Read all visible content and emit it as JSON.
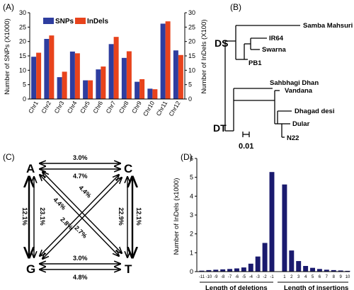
{
  "panel_labels": {
    "a": "(A)",
    "b": "(B)",
    "c": "(C)",
    "d": "(D)"
  },
  "colors": {
    "snp": "#2e3d9f",
    "indel": "#e8431c",
    "bar_d": "#1a1a6e",
    "axis": "#000000"
  },
  "chart_data": [
    {
      "type": "bar",
      "panel": "A",
      "categories": [
        "Chr1",
        "Chr2",
        "Chr3",
        "Chr4",
        "Chr5",
        "Chr6",
        "Chr7",
        "Chr8",
        "Chr9",
        "Chr10",
        "Chr11",
        "Chr12"
      ],
      "series": [
        {
          "name": "SNPs",
          "values": [
            14.7,
            20.9,
            7.6,
            16.5,
            6.5,
            10.3,
            19.1,
            14.3,
            6.0,
            3.6,
            26.2,
            16.9
          ],
          "axis": "left"
        },
        {
          "name": "InDels",
          "values": [
            16.1,
            22.1,
            9.5,
            15.9,
            6.5,
            11.3,
            21.6,
            16.6,
            6.9,
            3.4,
            27.0,
            15.3
          ],
          "axis": "right"
        }
      ],
      "ylabel": "Number of SNPs (X1000)",
      "y2label": "Number of InDels (X100)",
      "ylim": [
        0,
        30
      ],
      "y2lim": [
        0,
        30
      ],
      "yticks": [
        "0",
        "5",
        "10",
        "15",
        "20",
        "25",
        "30"
      ],
      "legend_position": "top-left"
    },
    {
      "type": "bar",
      "panel": "D",
      "categories": [
        "-11",
        "-10",
        "-9",
        "-8",
        "-7",
        "-6",
        "-5",
        "-4",
        "-3",
        "-2",
        "-1",
        "1",
        "2",
        "3",
        "4",
        "5",
        "6",
        "7",
        "8",
        "9",
        "10"
      ],
      "values": [
        0.05,
        0.08,
        0.1,
        0.12,
        0.14,
        0.17,
        0.22,
        0.42,
        0.8,
        1.52,
        5.28,
        4.62,
        1.12,
        0.56,
        0.3,
        0.2,
        0.14,
        0.1,
        0.08,
        0.06,
        0.04
      ],
      "ylabel": "Number of InDels (x1000)",
      "ylim": [
        0,
        6
      ],
      "yticks": [
        "0",
        "1",
        "2",
        "3",
        "4",
        "5",
        "6"
      ],
      "xlabel_left": "Length of deletions",
      "xlabel_right": "Length of insertions"
    }
  ],
  "tree": {
    "groups": [
      "DS",
      "DT"
    ],
    "leaves": [
      "Samba Mahsuri",
      "IR64",
      "Swarna",
      "PB1",
      "Sahbhagi Dhan",
      "Vandana",
      "Dhagad desi",
      "Dular",
      "N22"
    ],
    "scale_label": "0.01"
  },
  "mutations": {
    "nodes": [
      "A",
      "C",
      "G",
      "T"
    ],
    "labels": {
      "ac_top": "3.0%",
      "ac_bottom": "4.7%",
      "gt_top": "3.0%",
      "gt_bottom": "4.8%",
      "ag_left": "12.1%",
      "ag_right": "23.1%",
      "ct_left": "22.9%",
      "ct_right": "12.1%",
      "diag_1": "4.4%",
      "diag_2": "4.4%",
      "diag_3": "2.8%",
      "diag_4": "2.7%"
    }
  }
}
